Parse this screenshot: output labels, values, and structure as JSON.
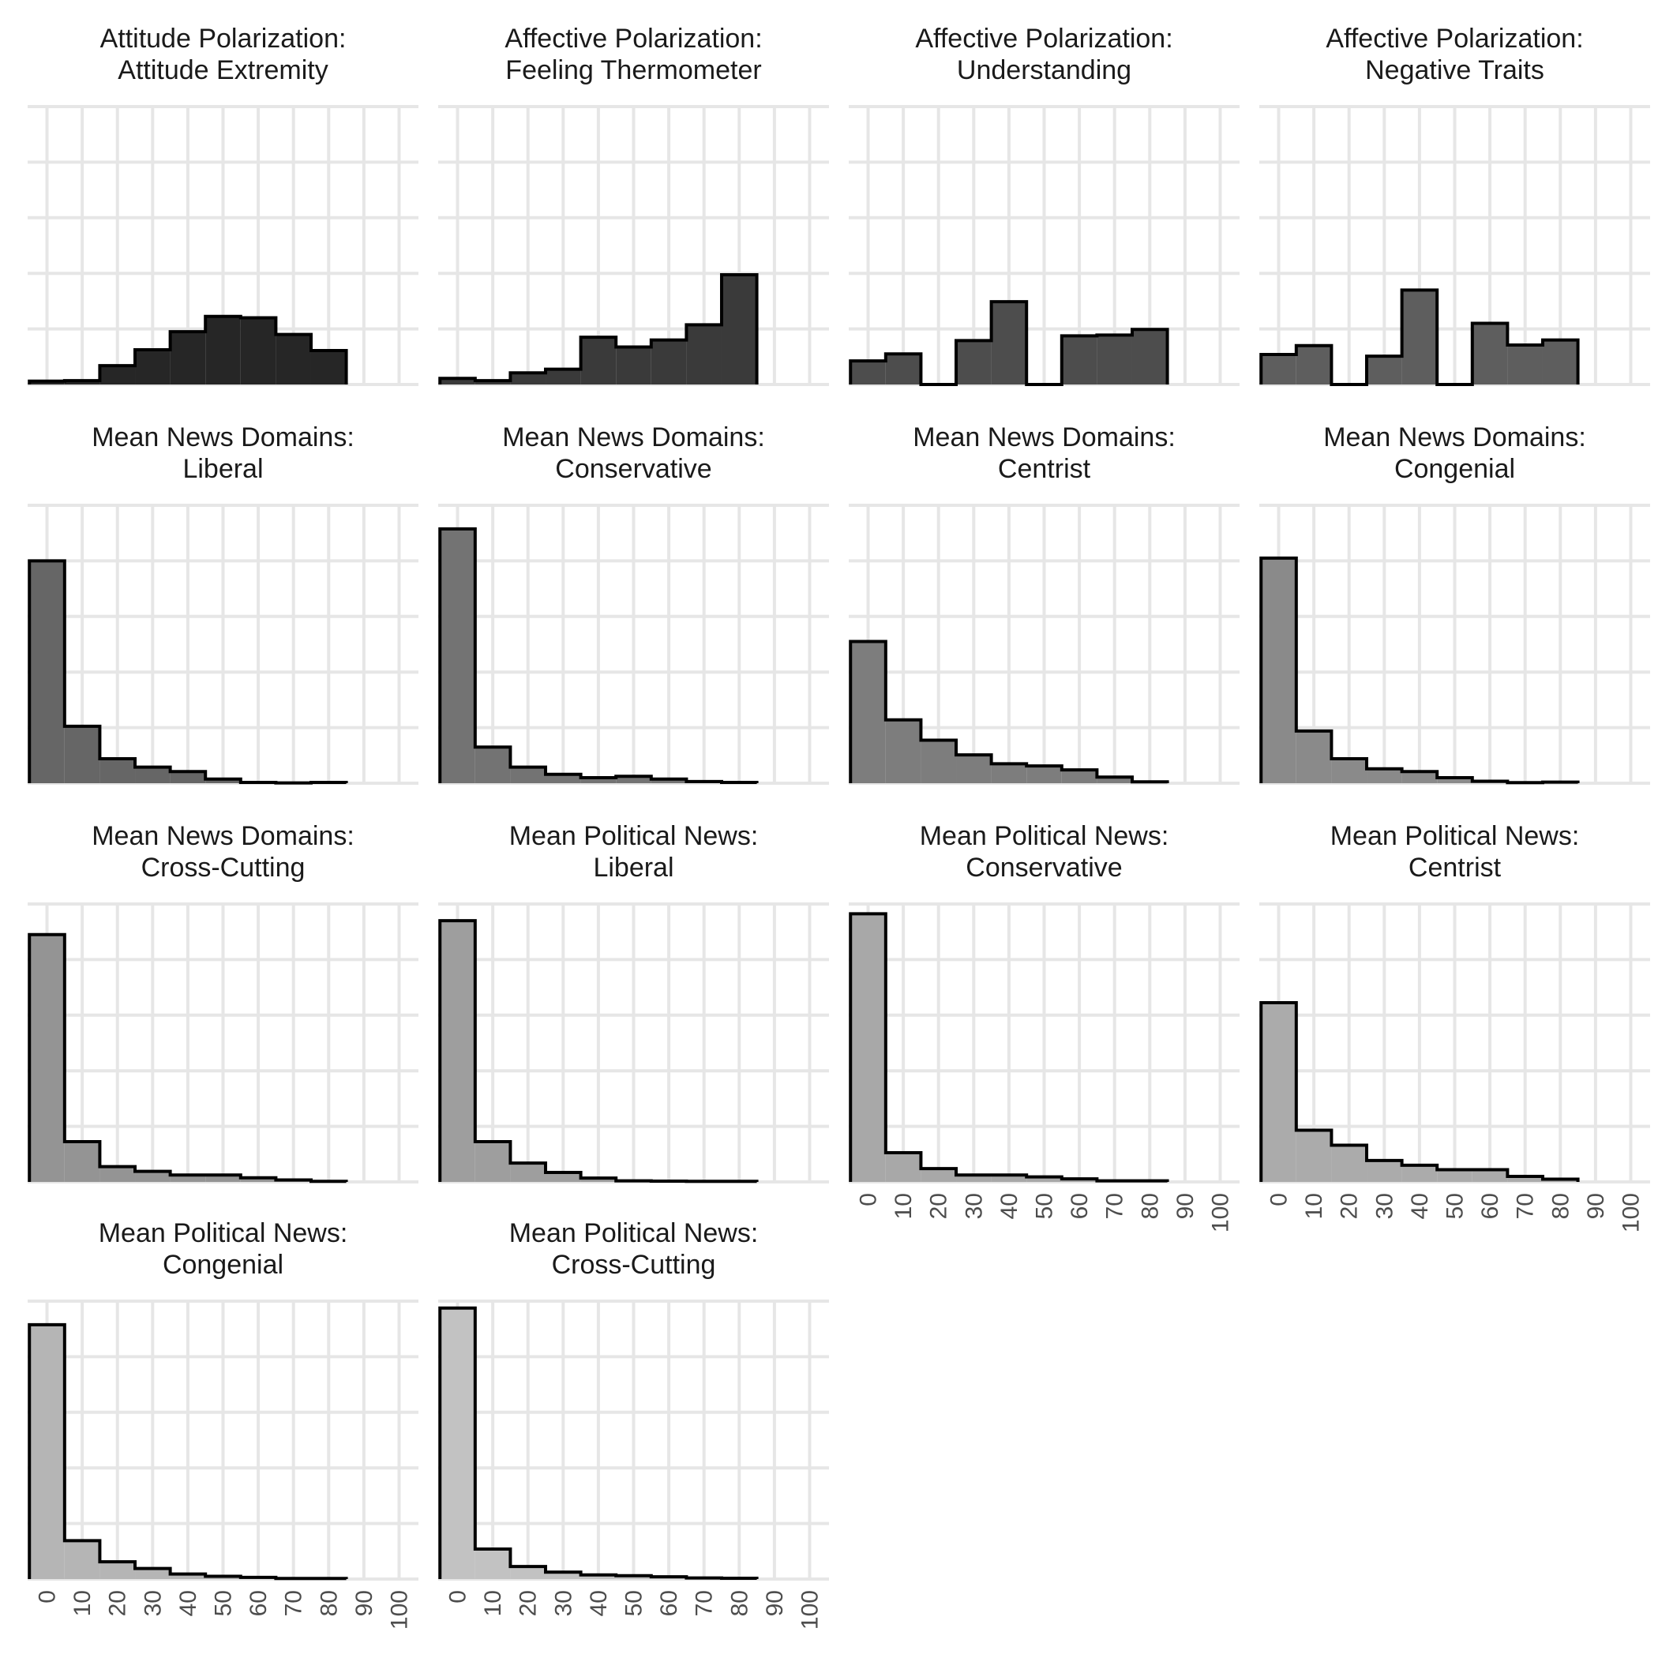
{
  "chart_data": {
    "type": "histogram-facets",
    "bins": [
      0,
      10,
      20,
      30,
      40,
      50,
      60,
      70,
      80,
      90,
      100
    ],
    "x_ticks": [
      "0",
      "10",
      "20",
      "30",
      "40",
      "50",
      "60",
      "70",
      "80",
      "90",
      "100"
    ],
    "xlim": [
      -5.5,
      105.5
    ],
    "ylim": [
      0,
      1.0
    ],
    "grid": true,
    "panels": [
      {
        "title_line1": "Attitude Polarization:",
        "title_line2": "Attitude Extremity",
        "fill": "#262626",
        "show_x_ticks": false,
        "values": [
          0.012,
          0.014,
          0.068,
          0.125,
          0.19,
          0.245,
          0.24,
          0.18,
          0.122
        ]
      },
      {
        "title_line1": "Affective Polarization:",
        "title_line2": "Feeling Thermometer",
        "fill": "#3a3a3a",
        "show_x_ticks": false,
        "values": [
          0.022,
          0.014,
          0.042,
          0.055,
          0.17,
          0.135,
          0.16,
          0.215,
          0.395
        ]
      },
      {
        "title_line1": "Affective Polarization:",
        "title_line2": "Understanding",
        "fill": "#4d4d4d",
        "show_x_ticks": false,
        "values": [
          0.085,
          0.11,
          0,
          0.158,
          0.298,
          0,
          0.175,
          0.178,
          0.198
        ]
      },
      {
        "title_line1": "Affective Polarization:",
        "title_line2": "Negative Traits",
        "fill": "#5e5e5e",
        "show_x_ticks": false,
        "values": [
          0.108,
          0.14,
          0,
          0.102,
          0.34,
          0,
          0.22,
          0.142,
          0.16
        ]
      },
      {
        "title_line1": "Mean News Domains:",
        "title_line2": "Liberal",
        "fill": "#666666",
        "show_x_ticks": false,
        "values": [
          0.8,
          0.205,
          0.088,
          0.058,
          0.042,
          0.015,
          0.003,
          0.001,
          0.003
        ]
      },
      {
        "title_line1": "Mean News Domains:",
        "title_line2": "Conservative",
        "fill": "#737373",
        "show_x_ticks": false,
        "values": [
          0.915,
          0.13,
          0.058,
          0.032,
          0.02,
          0.025,
          0.015,
          0.006,
          0.003
        ]
      },
      {
        "title_line1": "Mean News Domains:",
        "title_line2": "Centrist",
        "fill": "#7d7d7d",
        "show_x_ticks": false,
        "values": [
          0.51,
          0.228,
          0.155,
          0.102,
          0.07,
          0.062,
          0.048,
          0.022,
          0.005
        ]
      },
      {
        "title_line1": "Mean News Domains:",
        "title_line2": "Congenial",
        "fill": "#8a8a8a",
        "show_x_ticks": false,
        "values": [
          0.81,
          0.188,
          0.088,
          0.052,
          0.042,
          0.02,
          0.007,
          0.002,
          0.004
        ]
      },
      {
        "title_line1": "Mean News Domains:",
        "title_line2": "Cross-Cutting",
        "fill": "#949494",
        "show_x_ticks": false,
        "values": [
          0.89,
          0.145,
          0.055,
          0.038,
          0.025,
          0.025,
          0.015,
          0.007,
          0.002
        ]
      },
      {
        "title_line1": "Mean Political News:",
        "title_line2": "Liberal",
        "fill": "#9e9e9e",
        "show_x_ticks": false,
        "values": [
          0.94,
          0.145,
          0.068,
          0.034,
          0.014,
          0.004,
          0.003,
          0.002,
          0.002
        ]
      },
      {
        "title_line1": "Mean Political News:",
        "title_line2": "Conservative",
        "fill": "#a8a8a8",
        "show_x_ticks": true,
        "values": [
          0.965,
          0.105,
          0.048,
          0.025,
          0.025,
          0.018,
          0.011,
          0.004,
          0.004
        ]
      },
      {
        "title_line1": "Mean Political News:",
        "title_line2": "Centrist",
        "fill": "#ababab",
        "show_x_ticks": true,
        "values": [
          0.645,
          0.186,
          0.132,
          0.077,
          0.06,
          0.044,
          0.044,
          0.02,
          0.01
        ]
      },
      {
        "title_line1": "Mean Political News:",
        "title_line2": "Congenial",
        "fill": "#b5b5b5",
        "show_x_ticks": true,
        "values": [
          0.915,
          0.138,
          0.062,
          0.038,
          0.018,
          0.01,
          0.006,
          0.002,
          0.002
        ]
      },
      {
        "title_line1": "Mean Political News:",
        "title_line2": "Cross-Cutting",
        "fill": "#c2c2c2",
        "show_x_ticks": true,
        "values": [
          0.975,
          0.108,
          0.045,
          0.025,
          0.015,
          0.012,
          0.008,
          0.004,
          0.003
        ]
      }
    ]
  }
}
